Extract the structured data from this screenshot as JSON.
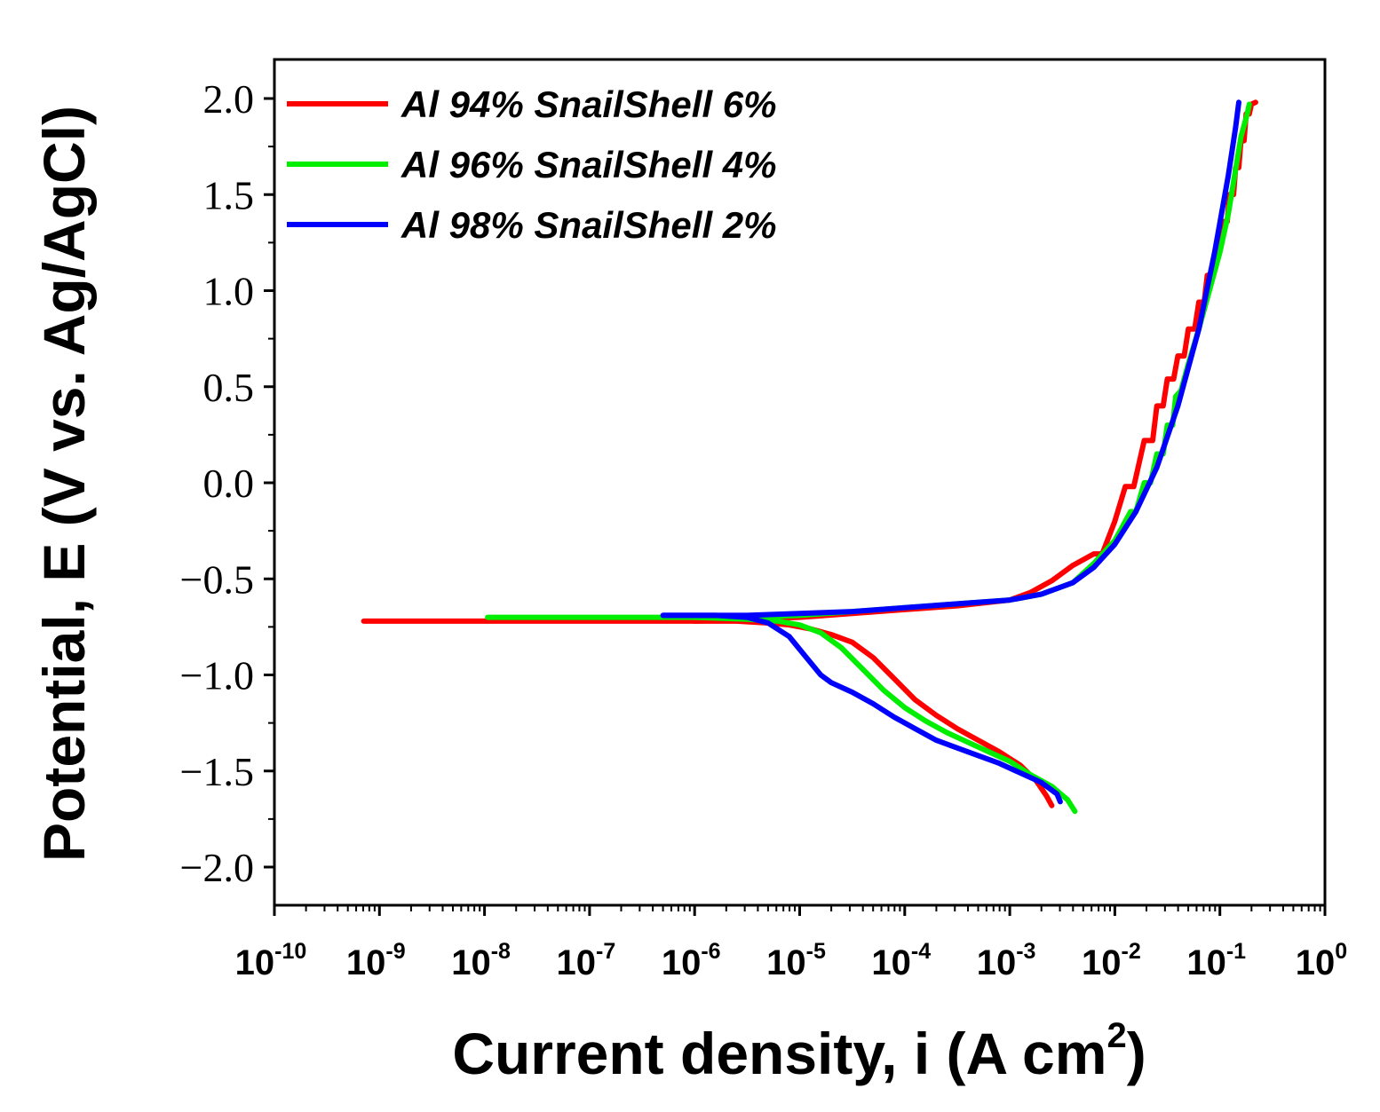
{
  "chart_data": {
    "type": "line",
    "title": "",
    "xlabel": "Current density, i (A cm",
    "xlabel_sup": "2",
    "xlabel_close": ")",
    "ylabel": "Potential, E (V vs. Ag/AgCl)",
    "xscale": "log",
    "xlim_exp": [
      -10,
      0
    ],
    "ylim": [
      -2.2,
      2.2
    ],
    "x_tick_base": "10",
    "x_ticks": [
      {
        "exp": -10,
        "label": "-10"
      },
      {
        "exp": -9,
        "label": "-9"
      },
      {
        "exp": -8,
        "label": "-8"
      },
      {
        "exp": -7,
        "label": "-7"
      },
      {
        "exp": -6,
        "label": "-6"
      },
      {
        "exp": -5,
        "label": "-5"
      },
      {
        "exp": -4,
        "label": "-4"
      },
      {
        "exp": -3,
        "label": "-3"
      },
      {
        "exp": -2,
        "label": "-2"
      },
      {
        "exp": -1,
        "label": "-1"
      },
      {
        "exp": 0,
        "label": "0"
      }
    ],
    "y_ticks": [
      {
        "value": 2.0,
        "label": "2.0"
      },
      {
        "value": 1.5,
        "label": "1.5"
      },
      {
        "value": 1.0,
        "label": "1.0"
      },
      {
        "value": 0.5,
        "label": "0.5"
      },
      {
        "value": 0.0,
        "label": "0.0"
      },
      {
        "value": -0.5,
        "label": "−0.5"
      },
      {
        "value": -1.0,
        "label": "−1.0"
      },
      {
        "value": -1.5,
        "label": "−1.5"
      },
      {
        "value": -2.0,
        "label": "−2.0"
      }
    ],
    "legend_position": "top-left",
    "series": [
      {
        "name": "Al 94% SnailShell 6%",
        "color": "#ff0000",
        "points": [
          [
            -9.15,
            -0.72
          ],
          [
            -8,
            -0.72
          ],
          [
            -7,
            -0.72
          ],
          [
            -6,
            -0.72
          ],
          [
            -5.6,
            -0.72
          ],
          [
            -5.3,
            -0.73
          ],
          [
            -5.1,
            -0.74
          ],
          [
            -4.9,
            -0.76
          ],
          [
            -4.7,
            -0.79
          ],
          [
            -4.5,
            -0.83
          ],
          [
            -4.3,
            -0.91
          ],
          [
            -4.1,
            -1.02
          ],
          [
            -3.9,
            -1.13
          ],
          [
            -3.7,
            -1.21
          ],
          [
            -3.5,
            -1.28
          ],
          [
            -3.3,
            -1.34
          ],
          [
            -3.1,
            -1.4
          ],
          [
            -2.9,
            -1.47
          ],
          [
            -2.75,
            -1.55
          ],
          [
            -2.65,
            -1.63
          ],
          [
            -2.6,
            -1.68
          ]
        ]
      },
      {
        "name": "Al 94% SnailShell 6%",
        "color": "#ff0000",
        "points": [
          [
            -6,
            -0.72
          ],
          [
            -5.5,
            -0.71
          ],
          [
            -5,
            -0.7
          ],
          [
            -4.5,
            -0.68
          ],
          [
            -4,
            -0.66
          ],
          [
            -3.5,
            -0.64
          ],
          [
            -3,
            -0.61
          ],
          [
            -2.8,
            -0.57
          ],
          [
            -2.6,
            -0.51
          ],
          [
            -2.4,
            -0.43
          ],
          [
            -2.2,
            -0.37
          ],
          [
            -2.12,
            -0.37
          ],
          [
            -2.0,
            -0.2
          ],
          [
            -1.9,
            -0.02
          ],
          [
            -1.82,
            -0.02
          ],
          [
            -1.72,
            0.22
          ],
          [
            -1.64,
            0.22
          ],
          [
            -1.6,
            0.4
          ],
          [
            -1.54,
            0.4
          ],
          [
            -1.5,
            0.54
          ],
          [
            -1.44,
            0.54
          ],
          [
            -1.4,
            0.66
          ],
          [
            -1.34,
            0.66
          ],
          [
            -1.3,
            0.8
          ],
          [
            -1.24,
            0.8
          ],
          [
            -1.2,
            0.94
          ],
          [
            -1.15,
            0.94
          ],
          [
            -1.12,
            1.08
          ],
          [
            -1.07,
            1.08
          ],
          [
            -1.04,
            1.22
          ],
          [
            -1.0,
            1.22
          ],
          [
            -0.97,
            1.36
          ],
          [
            -0.93,
            1.36
          ],
          [
            -0.91,
            1.5
          ],
          [
            -0.87,
            1.5
          ],
          [
            -0.85,
            1.64
          ],
          [
            -0.82,
            1.64
          ],
          [
            -0.8,
            1.78
          ],
          [
            -0.77,
            1.78
          ],
          [
            -0.75,
            1.92
          ],
          [
            -0.72,
            1.92
          ],
          [
            -0.7,
            1.97
          ],
          [
            -0.66,
            1.98
          ]
        ]
      },
      {
        "name": "Al 96% SnailShell 4%",
        "color": "#00ee00",
        "points": [
          [
            -7.97,
            -0.7
          ],
          [
            -7,
            -0.7
          ],
          [
            -6,
            -0.7
          ],
          [
            -5.5,
            -0.71
          ],
          [
            -5.2,
            -0.72
          ],
          [
            -5.0,
            -0.74
          ],
          [
            -4.8,
            -0.78
          ],
          [
            -4.6,
            -0.86
          ],
          [
            -4.4,
            -0.97
          ],
          [
            -4.2,
            -1.08
          ],
          [
            -4.0,
            -1.17
          ],
          [
            -3.8,
            -1.24
          ],
          [
            -3.6,
            -1.3
          ],
          [
            -3.4,
            -1.35
          ],
          [
            -3.2,
            -1.4
          ],
          [
            -3.0,
            -1.45
          ],
          [
            -2.8,
            -1.52
          ],
          [
            -2.6,
            -1.58
          ],
          [
            -2.45,
            -1.65
          ],
          [
            -2.38,
            -1.71
          ]
        ]
      },
      {
        "name": "Al 96% SnailShell 4%",
        "color": "#00ee00",
        "points": [
          [
            -6,
            -0.7
          ],
          [
            -5.5,
            -0.7
          ],
          [
            -5,
            -0.69
          ],
          [
            -4.5,
            -0.67
          ],
          [
            -4,
            -0.65
          ],
          [
            -3.5,
            -0.63
          ],
          [
            -3,
            -0.61
          ],
          [
            -2.7,
            -0.58
          ],
          [
            -2.4,
            -0.52
          ],
          [
            -2.2,
            -0.42
          ],
          [
            -2.0,
            -0.3
          ],
          [
            -1.85,
            -0.15
          ],
          [
            -1.8,
            -0.15
          ],
          [
            -1.72,
            0.0
          ],
          [
            -1.66,
            0.0
          ],
          [
            -1.6,
            0.15
          ],
          [
            -1.54,
            0.15
          ],
          [
            -1.5,
            0.3
          ],
          [
            -1.45,
            0.3
          ],
          [
            -1.42,
            0.45
          ],
          [
            -1.37,
            0.48
          ],
          [
            -1.3,
            0.62
          ],
          [
            -1.2,
            0.8
          ],
          [
            -1.1,
            1.0
          ],
          [
            -1.0,
            1.2
          ],
          [
            -0.92,
            1.4
          ],
          [
            -0.86,
            1.6
          ],
          [
            -0.8,
            1.8
          ],
          [
            -0.74,
            1.92
          ],
          [
            -0.72,
            1.97
          ]
        ]
      },
      {
        "name": "Al 98% SnailShell 2%",
        "color": "#0000ff",
        "points": [
          [
            -6.3,
            -0.69
          ],
          [
            -6,
            -0.69
          ],
          [
            -5.8,
            -0.69
          ],
          [
            -5.5,
            -0.7
          ],
          [
            -5.3,
            -0.73
          ],
          [
            -5.1,
            -0.8
          ],
          [
            -4.95,
            -0.9
          ],
          [
            -4.8,
            -1.0
          ],
          [
            -4.7,
            -1.04
          ],
          [
            -4.5,
            -1.09
          ],
          [
            -4.3,
            -1.15
          ],
          [
            -4.1,
            -1.22
          ],
          [
            -3.9,
            -1.28
          ],
          [
            -3.7,
            -1.34
          ],
          [
            -3.5,
            -1.38
          ],
          [
            -3.3,
            -1.42
          ],
          [
            -3.1,
            -1.46
          ],
          [
            -2.9,
            -1.51
          ],
          [
            -2.7,
            -1.56
          ],
          [
            -2.55,
            -1.62
          ],
          [
            -2.52,
            -1.66
          ]
        ]
      },
      {
        "name": "Al 98% SnailShell 2%",
        "color": "#0000ff",
        "points": [
          [
            -6.3,
            -0.69
          ],
          [
            -5.8,
            -0.69
          ],
          [
            -5.5,
            -0.69
          ],
          [
            -5,
            -0.68
          ],
          [
            -4.5,
            -0.67
          ],
          [
            -4,
            -0.65
          ],
          [
            -3.5,
            -0.63
          ],
          [
            -3,
            -0.61
          ],
          [
            -2.7,
            -0.58
          ],
          [
            -2.4,
            -0.52
          ],
          [
            -2.2,
            -0.44
          ],
          [
            -2.0,
            -0.32
          ],
          [
            -1.8,
            -0.15
          ],
          [
            -1.6,
            0.08
          ],
          [
            -1.4,
            0.4
          ],
          [
            -1.2,
            0.8
          ],
          [
            -1.05,
            1.2
          ],
          [
            -0.92,
            1.6
          ],
          [
            -0.85,
            1.85
          ],
          [
            -0.82,
            1.98
          ]
        ]
      }
    ],
    "legend": [
      {
        "label": "Al 94% SnailShell 6%",
        "color": "#ff0000"
      },
      {
        "label": "Al 96% SnailShell 4%",
        "color": "#00ee00"
      },
      {
        "label": "Al 98% SnailShell 2%",
        "color": "#0000ff"
      }
    ]
  }
}
